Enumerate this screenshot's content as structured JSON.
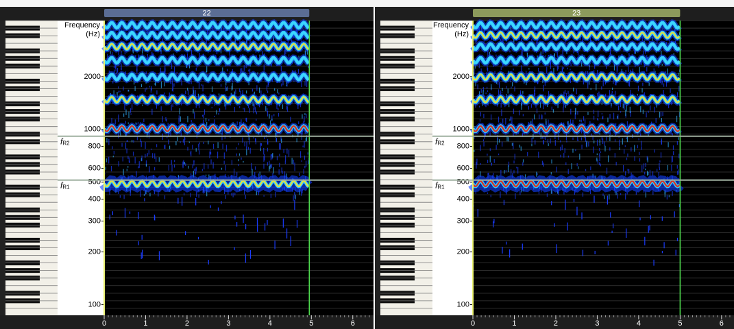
{
  "chart_data": [
    {
      "type": "spectrogram",
      "title": "22",
      "tab_color": "#5b6d94",
      "ylabel": "Frequency",
      "yunit": "(Hz)",
      "yscale": "log",
      "ylim": [
        87,
        4180
      ],
      "yticks": [
        100,
        200,
        300,
        400,
        500,
        600,
        800,
        1000,
        2000
      ],
      "xlim": [
        0,
        6.5
      ],
      "xticks": [
        0,
        1,
        2,
        3,
        4,
        5,
        6
      ],
      "end_time": 4.95,
      "harmonics": [
        490,
        1010,
        1480,
        1990,
        2480,
        2970,
        3450,
        3930
      ],
      "harmonic_colors": [
        "#e8e040",
        "#e03020",
        "#e8e040",
        "#40d8ff",
        "#40d8ff",
        "#e8e040",
        "#40d8ff",
        "#40d8ff"
      ],
      "resonances": [
        {
          "label": "f",
          "subscript": "R2",
          "value": 915
        },
        {
          "label": "f",
          "subscript": "R1",
          "value": 514
        }
      ]
    },
    {
      "type": "spectrogram",
      "title": "23",
      "tab_color": "#8c9a5c",
      "ylabel": "Frequency",
      "yunit": "(Hz)",
      "yscale": "log",
      "ylim": [
        87,
        4180
      ],
      "yticks": [
        100,
        200,
        300,
        400,
        500,
        600,
        800,
        1000,
        2000
      ],
      "xlim": [
        0,
        6.3
      ],
      "xticks": [
        0,
        1,
        2,
        3,
        4,
        5,
        6
      ],
      "end_time": 5.0,
      "harmonics": [
        490,
        1010,
        1480,
        1990,
        2480,
        2970,
        3450,
        3930
      ],
      "harmonic_colors": [
        "#e03020",
        "#e03020",
        "#e8e040",
        "#e8e040",
        "#40d8ff",
        "#40d8ff",
        "#e8e040",
        "#40d8ff"
      ],
      "resonances": [
        {
          "label": "f",
          "subscript": "R2",
          "value": 915
        },
        {
          "label": "f",
          "subscript": "R1",
          "value": 514
        }
      ]
    }
  ]
}
